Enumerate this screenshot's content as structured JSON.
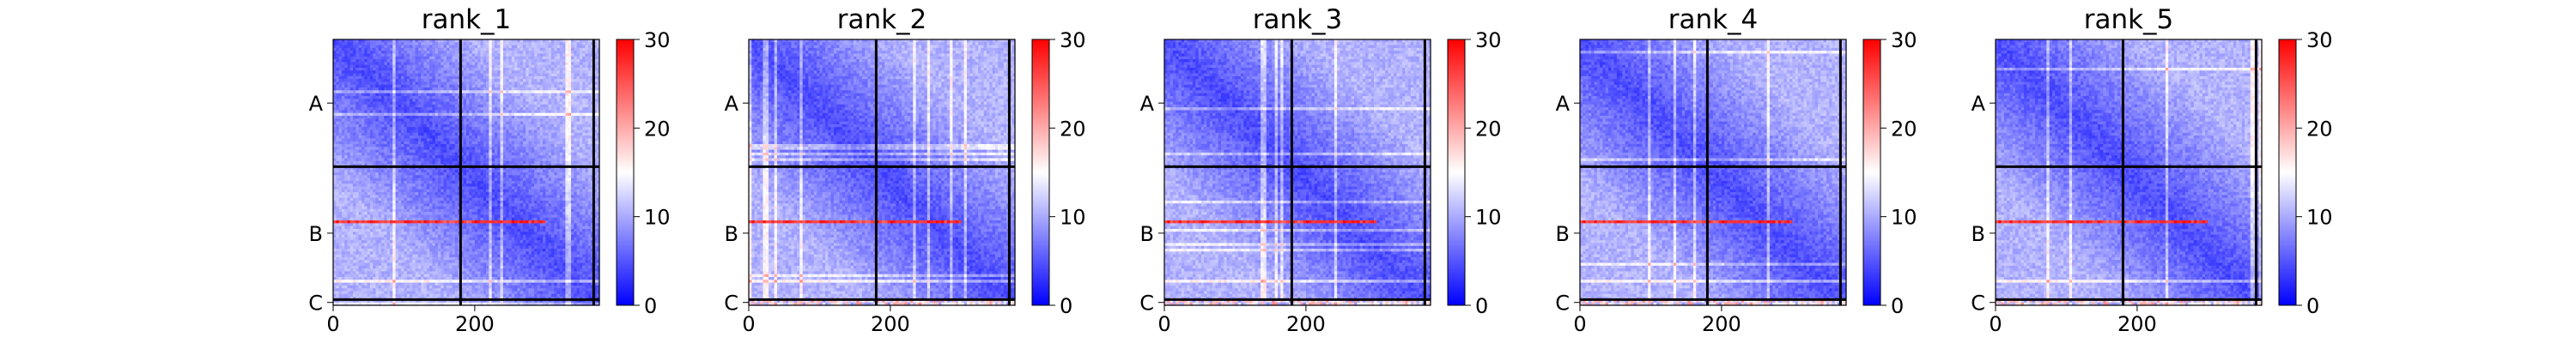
{
  "chart_data": [
    {
      "type": "heatmap",
      "title": "rank_1",
      "chains": [
        "A",
        "B",
        "C"
      ],
      "chain_ends": [
        180,
        368,
        376
      ],
      "x_ticks": [
        0,
        200
      ],
      "xlim": [
        0,
        376
      ],
      "colorbar_ticks": [
        0,
        10,
        20,
        30
      ],
      "vmin": 0,
      "vmax": 30,
      "colormap": [
        "#0000ff",
        "#ffffff",
        "#ff0000"
      ],
      "high_error_band": {
        "chain": "B",
        "row_range": [
          254,
          258
        ]
      }
    },
    {
      "type": "heatmap",
      "title": "rank_2",
      "chains": [
        "A",
        "B",
        "C"
      ],
      "chain_ends": [
        180,
        368,
        376
      ],
      "x_ticks": [
        0,
        200
      ],
      "xlim": [
        0,
        376
      ],
      "colorbar_ticks": [
        0,
        10,
        20,
        30
      ],
      "vmin": 0,
      "vmax": 30,
      "colormap": [
        "#0000ff",
        "#ffffff",
        "#ff0000"
      ],
      "high_error_band": {
        "chain": "B",
        "row_range": [
          254,
          258
        ]
      }
    },
    {
      "type": "heatmap",
      "title": "rank_3",
      "chains": [
        "A",
        "B",
        "C"
      ],
      "chain_ends": [
        180,
        368,
        376
      ],
      "x_ticks": [
        0,
        200
      ],
      "xlim": [
        0,
        376
      ],
      "colorbar_ticks": [
        0,
        10,
        20,
        30
      ],
      "vmin": 0,
      "vmax": 30,
      "colormap": [
        "#0000ff",
        "#ffffff",
        "#ff0000"
      ],
      "high_error_band": {
        "chain": "B",
        "row_range": [
          254,
          258
        ]
      }
    },
    {
      "type": "heatmap",
      "title": "rank_4",
      "chains": [
        "A",
        "B",
        "C"
      ],
      "chain_ends": [
        180,
        368,
        376
      ],
      "x_ticks": [
        0,
        200
      ],
      "xlim": [
        0,
        376
      ],
      "colorbar_ticks": [
        0,
        10,
        20,
        30
      ],
      "vmin": 0,
      "vmax": 30,
      "colormap": [
        "#0000ff",
        "#ffffff",
        "#ff0000"
      ],
      "high_error_band": {
        "chain": "B",
        "row_range": [
          254,
          258
        ]
      }
    },
    {
      "type": "heatmap",
      "title": "rank_5",
      "chains": [
        "A",
        "B",
        "C"
      ],
      "chain_ends": [
        180,
        368,
        376
      ],
      "x_ticks": [
        0,
        200
      ],
      "xlim": [
        0,
        376
      ],
      "colorbar_ticks": [
        0,
        10,
        20,
        30
      ],
      "vmin": 0,
      "vmax": 30,
      "colormap": [
        "#0000ff",
        "#ffffff",
        "#ff0000"
      ],
      "high_error_band": {
        "chain": "B",
        "row_range": [
          254,
          258
        ]
      }
    }
  ]
}
